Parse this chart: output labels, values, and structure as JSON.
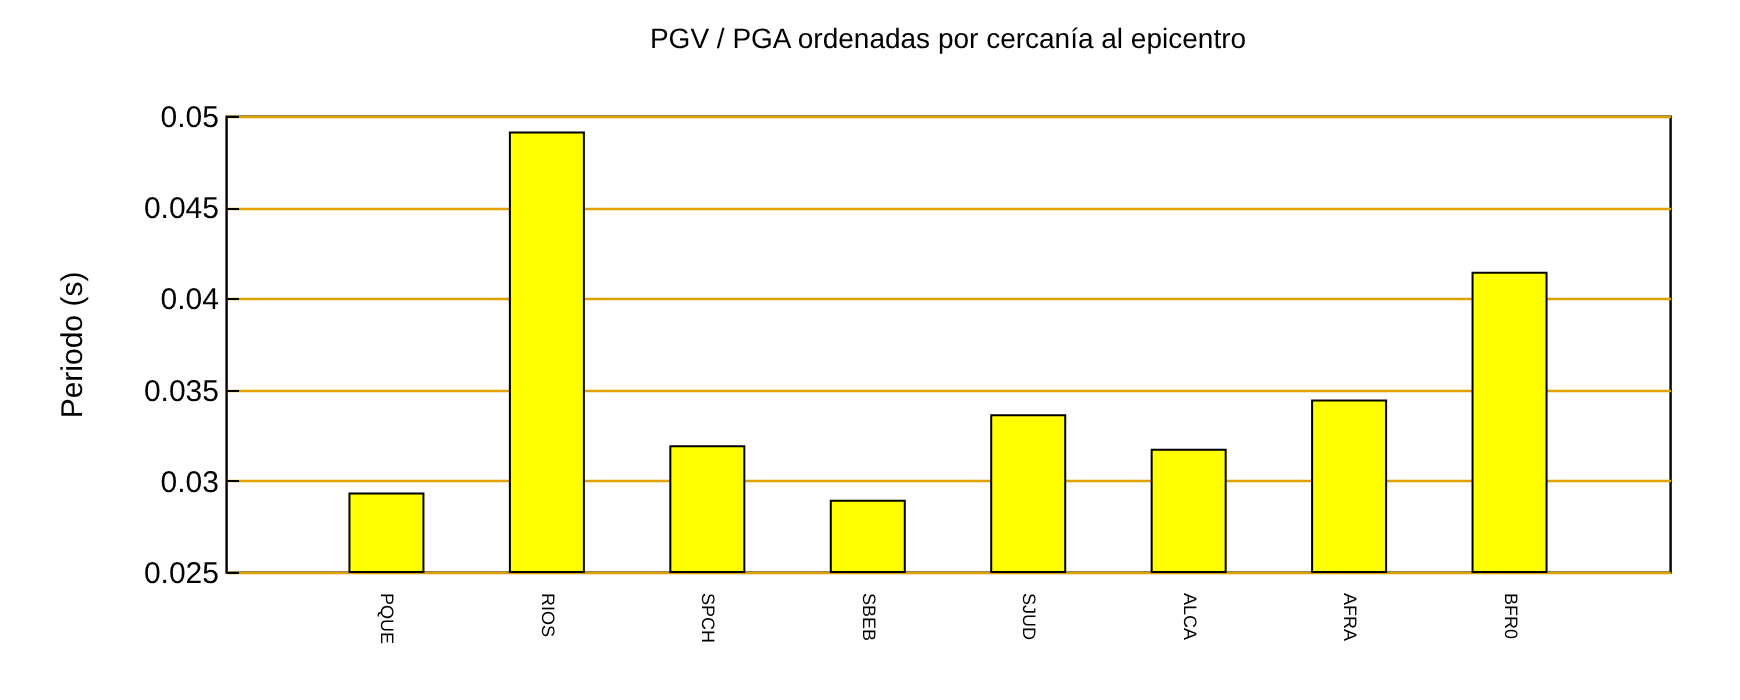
{
  "chart_data": {
    "type": "bar",
    "title": "PGV / PGA ordenadas por cercanía al epicentro",
    "ylabel": "Periodo (s)",
    "categories": [
      "PQUE",
      "RIOS",
      "SPCH",
      "SBEB",
      "SJUD",
      "ALCA",
      "AFRA",
      "BFR0"
    ],
    "values": [
      0.0293,
      0.0491,
      0.0319,
      0.0289,
      0.0336,
      0.0317,
      0.0344,
      0.0414
    ],
    "color": "#ffff00",
    "ylim": [
      0.025,
      0.05
    ],
    "yticks": [
      0.025,
      0.03,
      0.035,
      0.04,
      0.045,
      0.05
    ],
    "grid": "y"
  }
}
